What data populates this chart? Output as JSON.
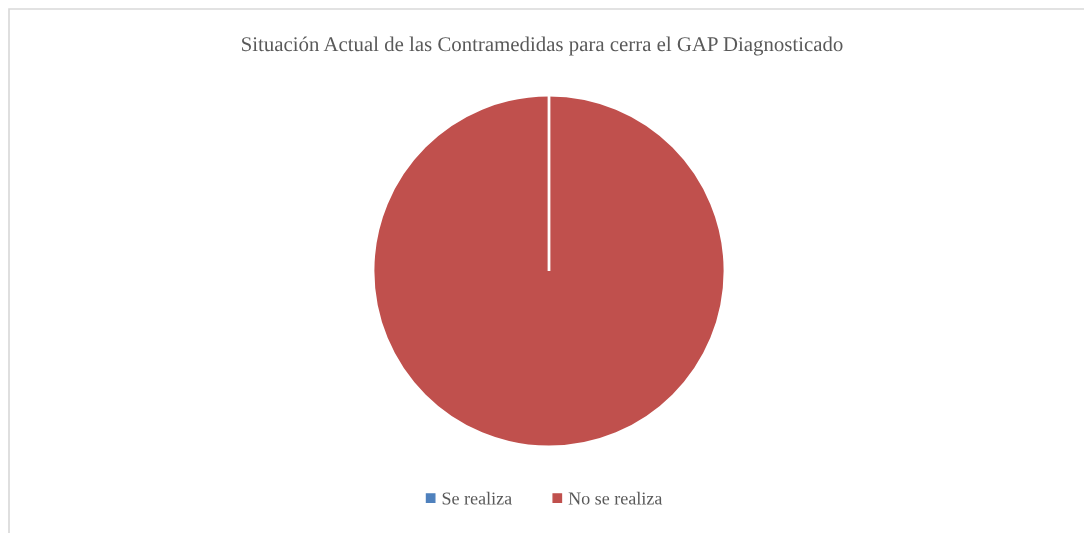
{
  "chart_data": {
    "type": "pie",
    "title": "Situación Actual de las Contramedidas para cerra el GAP Diagnosticado",
    "categories": [
      "Se realiza",
      "No se realiza"
    ],
    "values": [
      0,
      100
    ],
    "colors": [
      "#4f81bd",
      "#c0504d"
    ],
    "legend": "bottom"
  }
}
